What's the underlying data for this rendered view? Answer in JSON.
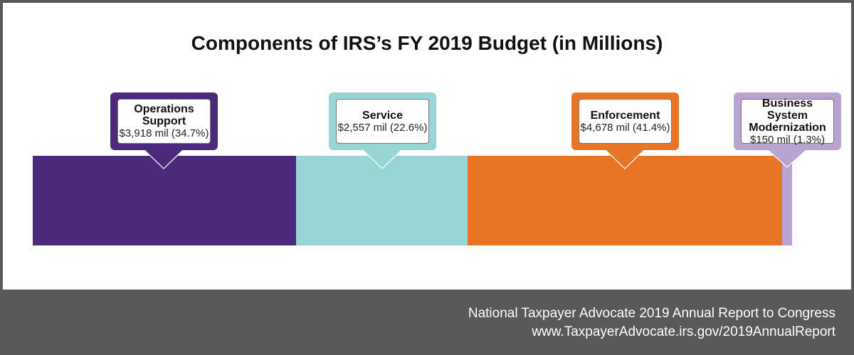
{
  "chart_data": {
    "type": "stacked-bar",
    "title": "Components of IRS’s FY 2019 Budget (in Millions)",
    "categories": [
      "Operations Support",
      "Service",
      "Enforcement",
      "Business System Modernization"
    ],
    "values": [
      3918,
      2557,
      4678,
      150
    ],
    "labels": [
      "$3,918 mil (34.7%)",
      "$2,557 mil (22.6%)",
      "$4,678 mil (41.4%)",
      "$150 mil (1.3%)"
    ],
    "percents": [
      34.7,
      22.6,
      41.4,
      1.3
    ],
    "colors": [
      "#4b2a7b",
      "#99d5d5",
      "#e87426",
      "#b9a3d0"
    ]
  },
  "footer": {
    "line1": "National Taxpayer Advocate 2019 Annual Report to Congress",
    "line2": "www.TaxpayerAdvocate.irs.gov/2019AnnualReport"
  }
}
